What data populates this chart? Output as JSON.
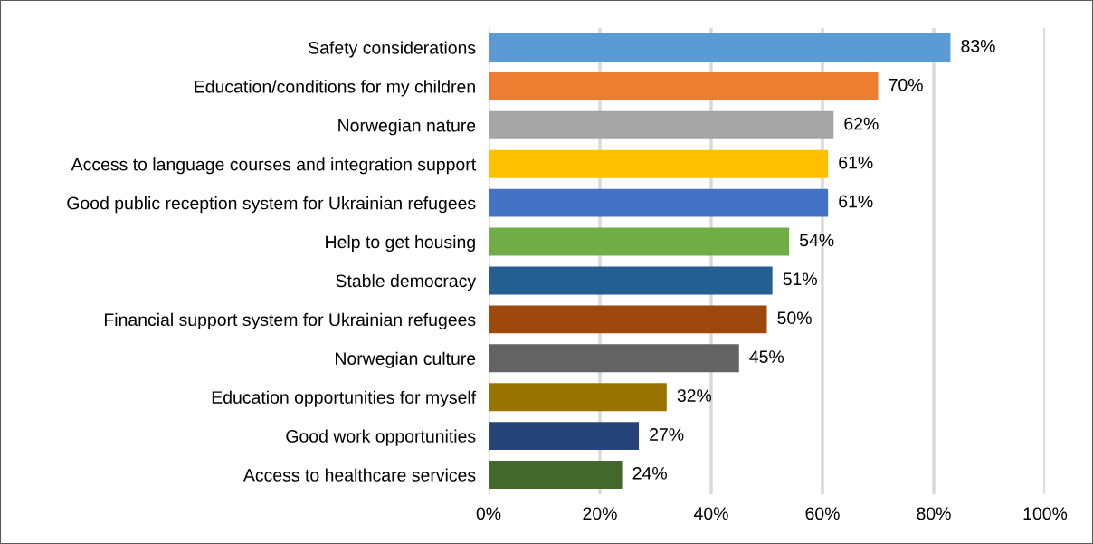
{
  "chart_data": {
    "type": "bar",
    "orientation": "horizontal",
    "categories": [
      "Safety considerations",
      "Education/conditions for my children",
      "Norwegian nature",
      "Access to language courses and integration support",
      "Good public reception system for Ukrainian refugees",
      "Help to get housing",
      "Stable democracy",
      "Financial support system for Ukrainian refugees",
      "Norwegian culture",
      "Education opportunities for myself",
      "Good work opportunities",
      "Access to healthcare services"
    ],
    "values": [
      83,
      70,
      62,
      61,
      61,
      54,
      51,
      50,
      45,
      32,
      27,
      24
    ],
    "value_labels": [
      "83%",
      "70%",
      "62%",
      "61%",
      "61%",
      "54%",
      "51%",
      "50%",
      "45%",
      "32%",
      "27%",
      "24%"
    ],
    "colors": [
      "#5b9bd5",
      "#ed7d31",
      "#a5a5a5",
      "#ffc000",
      "#4472c4",
      "#70ad47",
      "#255e91",
      "#9e480e",
      "#636363",
      "#997300",
      "#264478",
      "#43682b"
    ],
    "xlim": [
      0,
      100
    ],
    "xticks": [
      {
        "value": 0,
        "label": "0%"
      },
      {
        "value": 20,
        "label": "20%"
      },
      {
        "value": 40,
        "label": "40%"
      },
      {
        "value": 60,
        "label": "60%"
      },
      {
        "value": 80,
        "label": "80%"
      },
      {
        "value": 100,
        "label": "100%"
      }
    ],
    "grid": "x"
  }
}
